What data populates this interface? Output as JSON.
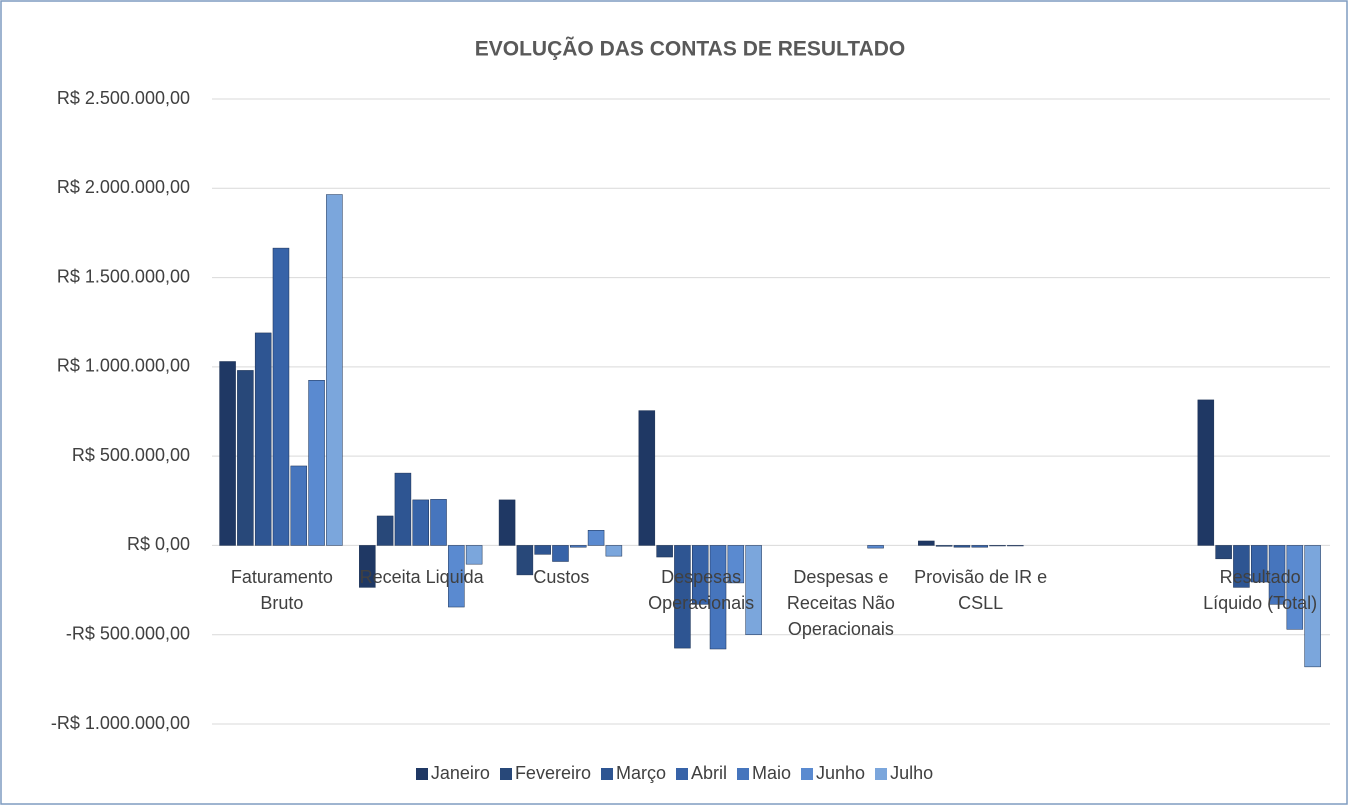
{
  "chart_data": {
    "type": "bar",
    "title": "EVOLUÇÃO DAS CONTAS DE RESULTADO",
    "categories": [
      "Faturamento Bruto",
      "Receita Liquida",
      "Custos",
      "Despesas Operacionais",
      "Despesas e Receitas Não Operacionais",
      "Provisão de IR e CSLL",
      null,
      "Resultado Líquido (Total)"
    ],
    "series": [
      {
        "name": "Janeiro",
        "color": "#1f3864",
        "values": [
          1030000,
          -235000,
          255000,
          755000,
          0,
          25000,
          0,
          815000
        ]
      },
      {
        "name": "Fevereiro",
        "color": "#284879",
        "values": [
          980000,
          165000,
          -165000,
          -65000,
          0,
          -5000,
          0,
          -75000
        ]
      },
      {
        "name": "Março",
        "color": "#2e5592",
        "values": [
          1190000,
          405000,
          -50000,
          -575000,
          0,
          -10000,
          0,
          -235000
        ]
      },
      {
        "name": "Abril",
        "color": "#3763a8",
        "values": [
          1665000,
          255000,
          -90000,
          -330000,
          0,
          -10000,
          0,
          -205000
        ]
      },
      {
        "name": "Maio",
        "color": "#4675bd",
        "values": [
          445000,
          258000,
          -10000,
          -580000,
          0,
          -3000,
          0,
          -330000
        ]
      },
      {
        "name": "Junho",
        "color": "#5a8ad0",
        "values": [
          925000,
          -345000,
          85000,
          -210000,
          -15000,
          -3000,
          0,
          -470000
        ]
      },
      {
        "name": "Julho",
        "color": "#7ba6dc",
        "values": [
          1965000,
          -105000,
          -60000,
          -500000,
          0,
          0,
          0,
          -680000
        ]
      }
    ],
    "ylim": [
      -1000000,
      2500000
    ],
    "yticks": [
      {
        "value": -1000000,
        "label": "-R$ 1.000.000,00"
      },
      {
        "value": -500000,
        "label": "-R$ 500.000,00"
      },
      {
        "value": 0,
        "label": "R$ 0,00"
      },
      {
        "value": 500000,
        "label": "R$ 500.000,00"
      },
      {
        "value": 1000000,
        "label": "R$ 1.000.000,00"
      },
      {
        "value": 1500000,
        "label": "R$ 1.500.000,00"
      },
      {
        "value": 2000000,
        "label": "R$ 2.000.000,00"
      },
      {
        "value": 2500000,
        "label": "R$ 2.500.000,00"
      }
    ],
    "grid": true,
    "legend": "bottom"
  }
}
